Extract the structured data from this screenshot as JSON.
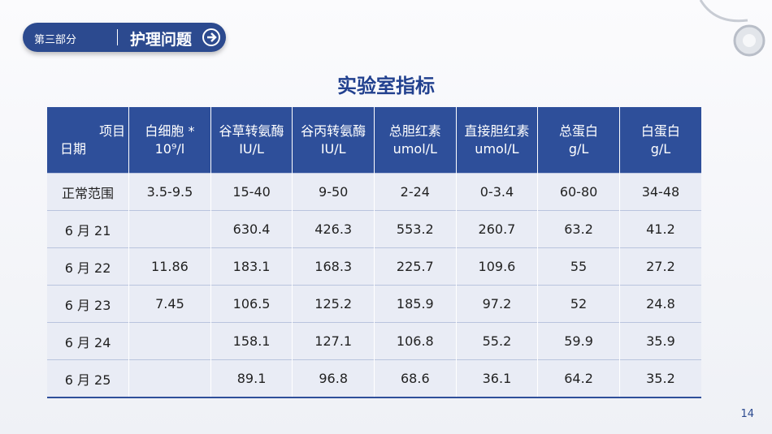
{
  "header": {
    "section": "第三部分",
    "title": "护理问题"
  },
  "title": "实验室指标",
  "table": {
    "corner": [
      "项目",
      "日期"
    ],
    "columns": [
      [
        "白细胞 *",
        "10⁹/l"
      ],
      [
        "谷草转氨酶",
        "IU/L"
      ],
      [
        "谷丙转氨酶",
        "IU/L"
      ],
      [
        "总胆红素",
        "umol/L"
      ],
      [
        "直接胆红素",
        "umol/L"
      ],
      [
        "总蛋白",
        "g/L"
      ],
      [
        "白蛋白",
        "g/L"
      ]
    ],
    "rows": [
      [
        "正常范围",
        "3.5-9.5",
        "15-40",
        "9-50",
        "2-24",
        "0-3.4",
        "60-80",
        "34-48"
      ],
      [
        "6 月 21",
        null,
        "630.4",
        "426.3",
        "553.2",
        "260.7",
        "63.2",
        "41.2"
      ],
      [
        "6 月 22",
        "11.86",
        "183.1",
        "168.3",
        "225.7",
        "109.6",
        "55",
        "27.2"
      ],
      [
        "6 月 23",
        "7.45",
        "106.5",
        "125.2",
        "185.9",
        "97.2",
        "52",
        "24.8"
      ],
      [
        "6 月 24",
        null,
        "158.1",
        "127.1",
        "106.8",
        "55.2",
        "59.9",
        "35.9"
      ],
      [
        "6 月 25",
        null,
        "89.1",
        "96.8",
        "68.6",
        "36.1",
        "64.2",
        "35.2"
      ]
    ]
  },
  "page_number": "14"
}
